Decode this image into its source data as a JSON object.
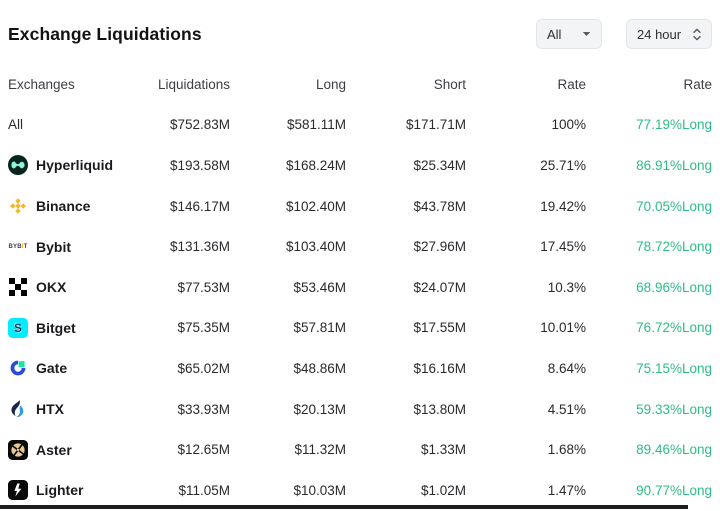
{
  "header": {
    "title": "Exchange Liquidations",
    "scope_filter": {
      "value": "All",
      "icon": "chevron-down-icon"
    },
    "time_filter": {
      "value": "24 hour",
      "icon": "chevron-up-down-icon"
    }
  },
  "table": {
    "columns": [
      {
        "key": "exchange",
        "label": "Exchanges"
      },
      {
        "key": "liquidations",
        "label": "Liquidations"
      },
      {
        "key": "long",
        "label": "Long"
      },
      {
        "key": "short",
        "label": "Short"
      },
      {
        "key": "rate",
        "label": "Rate"
      },
      {
        "key": "long_rate",
        "label": "Rate"
      }
    ],
    "rows": [
      {
        "exchange": "All",
        "icon": null,
        "liquidations": "$752.83M",
        "long": "$581.11M",
        "short": "$171.71M",
        "rate": "100%",
        "long_rate": "77.19%Long"
      },
      {
        "exchange": "Hyperliquid",
        "icon": "hyperliquid-logo-icon",
        "liquidations": "$193.58M",
        "long": "$168.24M",
        "short": "$25.34M",
        "rate": "25.71%",
        "long_rate": "86.91%Long"
      },
      {
        "exchange": "Binance",
        "icon": "binance-logo-icon",
        "liquidations": "$146.17M",
        "long": "$102.40M",
        "short": "$43.78M",
        "rate": "19.42%",
        "long_rate": "70.05%Long"
      },
      {
        "exchange": "Bybit",
        "icon": "bybit-logo-icon",
        "liquidations": "$131.36M",
        "long": "$103.40M",
        "short": "$27.96M",
        "rate": "17.45%",
        "long_rate": "78.72%Long"
      },
      {
        "exchange": "OKX",
        "icon": "okx-logo-icon",
        "liquidations": "$77.53M",
        "long": "$53.46M",
        "short": "$24.07M",
        "rate": "10.3%",
        "long_rate": "68.96%Long"
      },
      {
        "exchange": "Bitget",
        "icon": "bitget-logo-icon",
        "liquidations": "$75.35M",
        "long": "$57.81M",
        "short": "$17.55M",
        "rate": "10.01%",
        "long_rate": "76.72%Long"
      },
      {
        "exchange": "Gate",
        "icon": "gate-logo-icon",
        "liquidations": "$65.02M",
        "long": "$48.86M",
        "short": "$16.16M",
        "rate": "8.64%",
        "long_rate": "75.15%Long"
      },
      {
        "exchange": "HTX",
        "icon": "htx-logo-icon",
        "liquidations": "$33.93M",
        "long": "$20.13M",
        "short": "$13.80M",
        "rate": "4.51%",
        "long_rate": "59.33%Long"
      },
      {
        "exchange": "Aster",
        "icon": "aster-logo-icon",
        "liquidations": "$12.65M",
        "long": "$11.32M",
        "short": "$1.33M",
        "rate": "1.68%",
        "long_rate": "89.46%Long"
      },
      {
        "exchange": "Lighter",
        "icon": "lighter-logo-icon",
        "liquidations": "$11.05M",
        "long": "$10.03M",
        "short": "$1.02M",
        "rate": "1.47%",
        "long_rate": "90.77%Long"
      }
    ]
  },
  "colors": {
    "long_rate_green": "#2EBD85",
    "binance_yellow": "#F3BA2F",
    "bitget_cyan": "#00ECFF",
    "scrollbar_dark": "#1D1D1D"
  }
}
